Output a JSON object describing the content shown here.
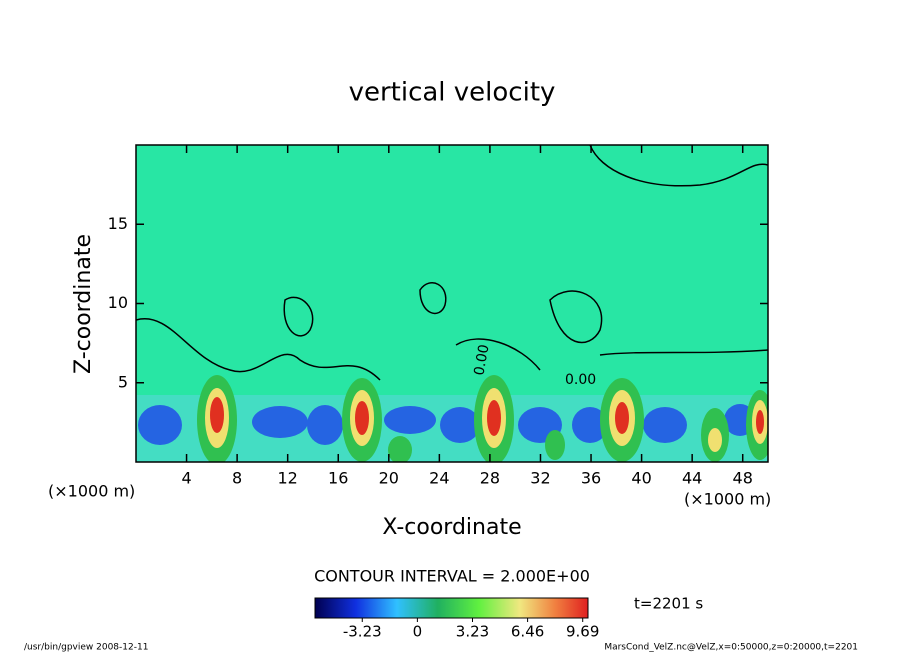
{
  "chart_data": {
    "type": "contour",
    "title": "vertical velocity",
    "x_label": "X-coordinate",
    "y_label": "Z-coordinate",
    "x_unit": "(×1000 m)",
    "xlim": [
      0,
      50
    ],
    "ylim": [
      0,
      20
    ],
    "xticks": [
      4,
      8,
      12,
      16,
      20,
      24,
      28,
      32,
      36,
      40,
      44,
      48
    ],
    "yticks": [
      5,
      10,
      15
    ],
    "contour_interval": "CONTOUR INTERVAL = 2.000E+00",
    "contour_labels": [
      "0.00",
      "0.00"
    ],
    "colorbar": {
      "clim": [
        -6,
        10
      ],
      "ticks": [
        -3.23,
        0,
        3.23,
        6.46,
        9.69
      ]
    },
    "time_label": "t=2201 s",
    "footer_left": "/usr/bin/gpview   2008-12-11",
    "footer_right": "MarsCond_VelZ.nc@VelZ,x=0:50000,z=0:20000,t=2201"
  }
}
